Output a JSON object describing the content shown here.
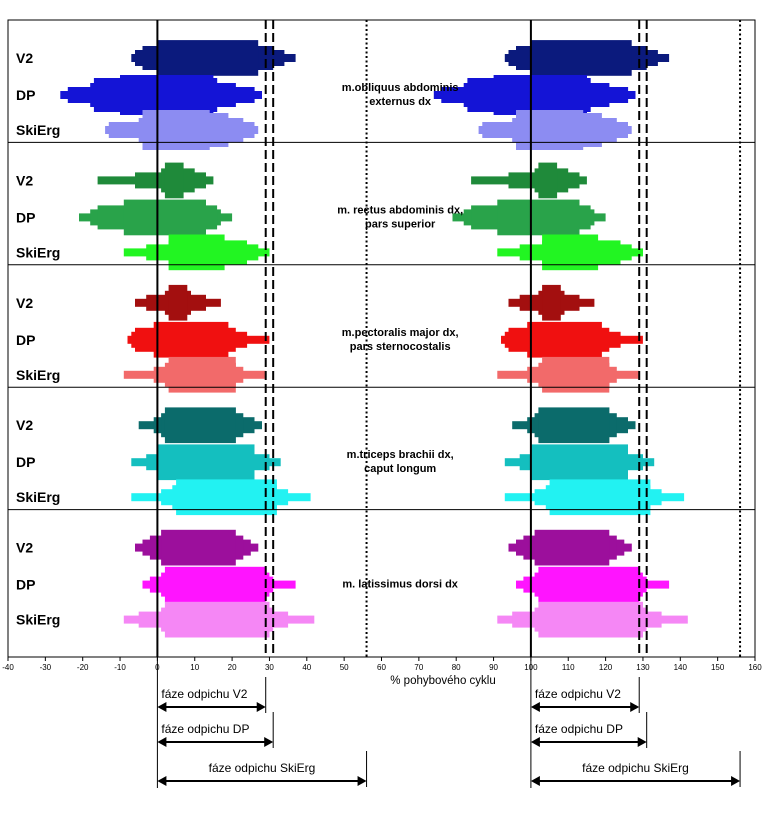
{
  "chart_data": {
    "type": "bar",
    "subtype": "EMG activation envelope (stacked intensity bars per muscle and technique)",
    "xlabel": "% pohybového cyklu",
    "xlim": [
      -40,
      160
    ],
    "xticks": [
      -40,
      -30,
      -20,
      -10,
      0,
      10,
      20,
      30,
      40,
      50,
      60,
      70,
      80,
      90,
      100,
      110,
      120,
      130,
      140,
      150,
      160
    ],
    "xtick_labels": [
      "-40",
      "-30",
      "-20",
      "-10",
      "0",
      "10",
      "20",
      "30",
      "40",
      "50",
      "60",
      "70",
      "80",
      "90",
      "100",
      "110",
      "120",
      "130",
      "140",
      "150",
      "160"
    ],
    "cycle_offset": 100,
    "reference_lines": [
      {
        "name": "cycle-start",
        "x": 0,
        "style": "solid"
      },
      {
        "name": "end-V2",
        "x": 29,
        "style": "dashed"
      },
      {
        "name": "end-DP",
        "x": 31,
        "style": "dashed"
      },
      {
        "name": "end-SkiErg",
        "x": 56,
        "style": "dotted"
      },
      {
        "name": "cycle-start-2",
        "x": 100,
        "style": "solid"
      },
      {
        "name": "end-V2-2",
        "x": 129,
        "style": "dashed"
      },
      {
        "name": "end-DP-2",
        "x": 131,
        "style": "dashed"
      },
      {
        "name": "end-SkiErg-2",
        "x": 156,
        "style": "dotted"
      }
    ],
    "techniques": [
      "V2",
      "DP",
      "SkiErg"
    ],
    "panels": [
      {
        "muscle": "m.obliquus abdominis\nexternus dx",
        "rows": [
          {
            "technique": "V2",
            "color": "#0b1a7d",
            "layers": [
              [
                -7,
                37
              ],
              [
                -6,
                34
              ],
              [
                -4,
                31
              ],
              [
                0,
                27
              ]
            ]
          },
          {
            "technique": "DP",
            "color": "#1414d6",
            "layers": [
              [
                -26,
                28
              ],
              [
                -24,
                26
              ],
              [
                -18,
                21
              ],
              [
                -17,
                16
              ],
              [
                -10,
                15
              ]
            ]
          },
          {
            "technique": "SkiErg",
            "color": "#8c8cf2",
            "layers": [
              [
                -14,
                27
              ],
              [
                -13,
                26
              ],
              [
                -5,
                23
              ],
              [
                -4,
                19
              ],
              [
                -4,
                14
              ]
            ]
          }
        ]
      },
      {
        "muscle": "m. rectus abdominis dx,\npars superior",
        "rows": [
          {
            "technique": "V2",
            "color": "#1f8a3a",
            "layers": [
              [
                -16,
                15
              ],
              [
                -6,
                13
              ],
              [
                1,
                10
              ],
              [
                2,
                7
              ]
            ]
          },
          {
            "technique": "DP",
            "color": "#29a34a",
            "layers": [
              [
                -21,
                20
              ],
              [
                -18,
                17
              ],
              [
                -16,
                16
              ],
              [
                -9,
                13
              ]
            ]
          },
          {
            "technique": "SkiErg",
            "color": "#22f522",
            "layers": [
              [
                -9,
                30
              ],
              [
                -3,
                27
              ],
              [
                3,
                24
              ],
              [
                3,
                18
              ]
            ]
          }
        ]
      },
      {
        "muscle": "m.pectoralis major dx,\npars sternocostalis",
        "rows": [
          {
            "technique": "V2",
            "color": "#a30f0f",
            "layers": [
              [
                -6,
                17
              ],
              [
                -3,
                13
              ],
              [
                2,
                9
              ],
              [
                3,
                8
              ]
            ]
          },
          {
            "technique": "DP",
            "color": "#f01010",
            "layers": [
              [
                -8,
                30
              ],
              [
                -7,
                24
              ],
              [
                -6,
                21
              ],
              [
                -1,
                19
              ]
            ]
          },
          {
            "technique": "SkiErg",
            "color": "#f26a6a",
            "layers": [
              [
                -9,
                29
              ],
              [
                -1,
                23
              ],
              [
                2,
                21
              ],
              [
                3,
                21
              ]
            ]
          }
        ]
      },
      {
        "muscle": "m.triceps brachii dx,\ncaput longum",
        "rows": [
          {
            "technique": "V2",
            "color": "#0b6b6b",
            "layers": [
              [
                -5,
                28
              ],
              [
                -1,
                26
              ],
              [
                1,
                23
              ],
              [
                2,
                21
              ]
            ]
          },
          {
            "technique": "DP",
            "color": "#14bfbf",
            "layers": [
              [
                -7,
                33
              ],
              [
                -3,
                30
              ],
              [
                0,
                26
              ],
              [
                0,
                26
              ]
            ]
          },
          {
            "technique": "SkiErg",
            "color": "#22f2f2",
            "layers": [
              [
                -7,
                41
              ],
              [
                1,
                35
              ],
              [
                4,
                32
              ],
              [
                5,
                32
              ]
            ]
          }
        ]
      },
      {
        "muscle": "m. latissimus dorsi dx",
        "rows": [
          {
            "technique": "V2",
            "color": "#9c0f9c",
            "layers": [
              [
                -6,
                27
              ],
              [
                -4,
                25
              ],
              [
                -2,
                23
              ],
              [
                1,
                21
              ]
            ]
          },
          {
            "technique": "DP",
            "color": "#ff14ff",
            "layers": [
              [
                -4,
                37
              ],
              [
                -2,
                31
              ],
              [
                1,
                30
              ],
              [
                2,
                29
              ]
            ]
          },
          {
            "technique": "SkiErg",
            "color": "#f587f5",
            "layers": [
              [
                -9,
                42
              ],
              [
                -5,
                35
              ],
              [
                1,
                31
              ],
              [
                2,
                30
              ]
            ]
          }
        ]
      }
    ],
    "phase_arrows": [
      {
        "label": "fáze odpichu V2",
        "from": 0,
        "to": 29
      },
      {
        "label": "fáze odpichu  DP",
        "from": 0,
        "to": 31
      },
      {
        "label": "fáze odpichu SkiErg",
        "from": 0,
        "to": 56
      },
      {
        "label": "fáze odpichu V2",
        "from": 100,
        "to": 129
      },
      {
        "label": "fáze odpichu  DP",
        "from": 100,
        "to": 131
      },
      {
        "label": "fáze odpichu SkiErg",
        "from": 100,
        "to": 156
      }
    ]
  }
}
